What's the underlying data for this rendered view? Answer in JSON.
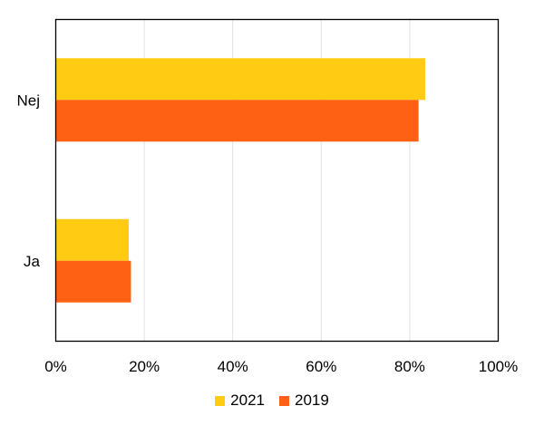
{
  "chart_data": {
    "type": "bar",
    "orientation": "horizontal",
    "categories": [
      "Nej",
      "Ja"
    ],
    "series": [
      {
        "name": "2021",
        "values": [
          83.5,
          16.5
        ],
        "color": "#FFCC13"
      },
      {
        "name": "2019",
        "values": [
          82,
          17
        ],
        "color": "#FF6114"
      }
    ],
    "xlim": [
      0,
      100
    ],
    "x_ticks": [
      "0%",
      "20%",
      "40%",
      "60%",
      "80%",
      "100%"
    ],
    "grid": true,
    "legend": "bottom-center",
    "title": "",
    "xlabel": "",
    "ylabel": ""
  }
}
